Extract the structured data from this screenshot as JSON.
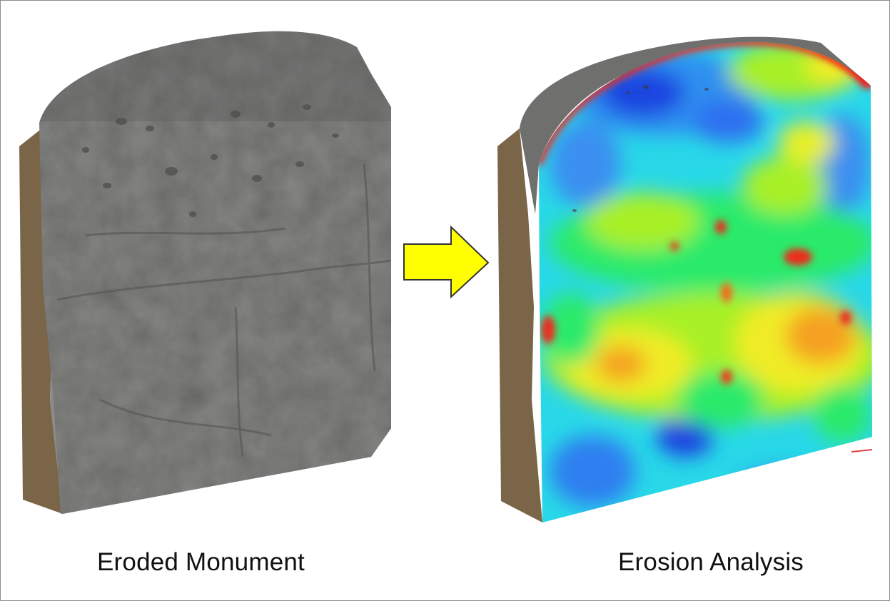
{
  "captions": {
    "left": "Eroded Monument",
    "right": "Erosion Analysis"
  },
  "colors": {
    "stone_side": "#7a6548",
    "stone_face": "#8a8a88",
    "stone_top": "#6c6c6b",
    "arrow_fill": "#ffff00",
    "arrow_stroke": "#333333",
    "border": "#8c8c8c",
    "heatmap_scale": [
      "#1a2fd8",
      "#2f8ff0",
      "#22d8f0",
      "#2bea6a",
      "#a8f028",
      "#f0ec28",
      "#f5a020",
      "#ee2a1a"
    ]
  },
  "icons": {
    "arrow": "right-arrow-icon"
  }
}
